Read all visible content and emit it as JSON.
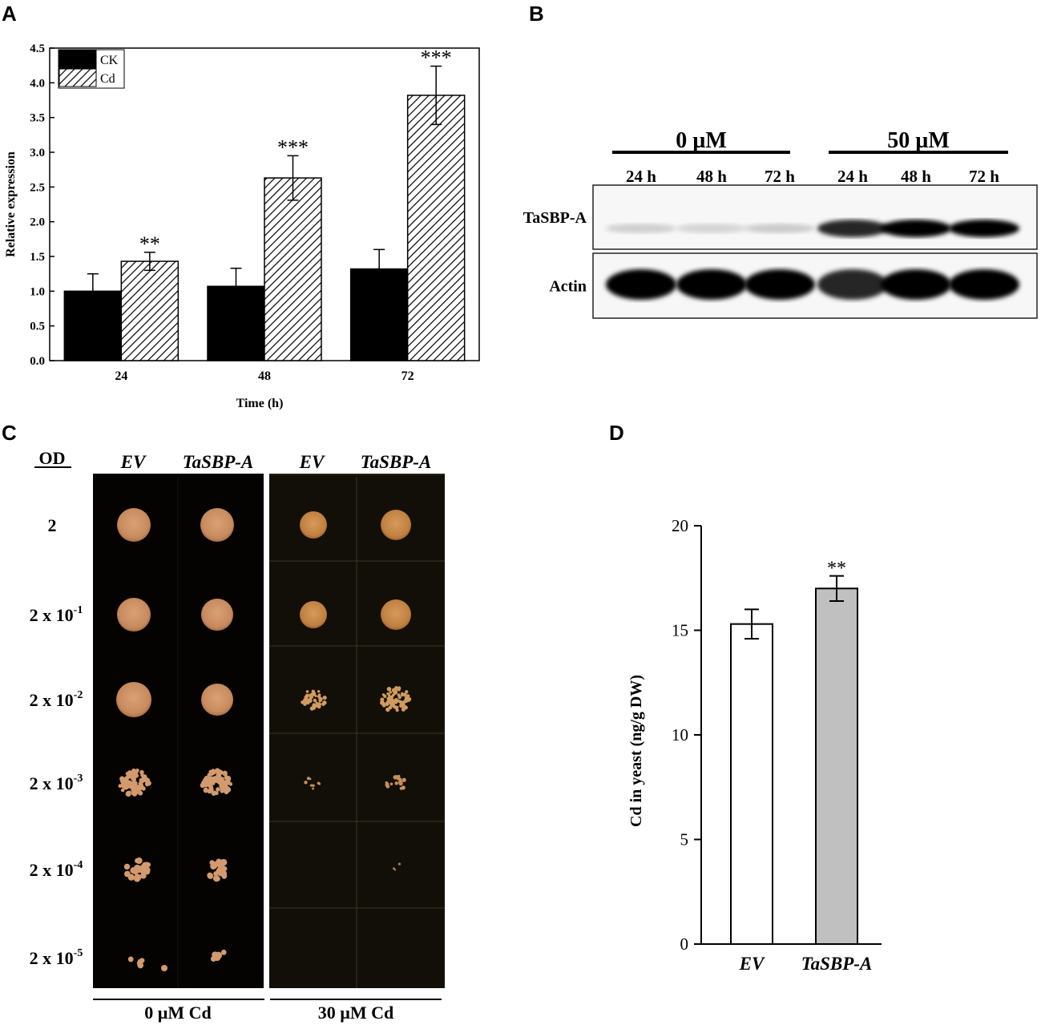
{
  "panels": {
    "a": {
      "letter": "A"
    },
    "b": {
      "letter": "B"
    },
    "c": {
      "letter": "C"
    },
    "d": {
      "letter": "D"
    }
  },
  "chart_data": [
    {
      "id": "a",
      "type": "bar",
      "xlabel": "Time (h)",
      "ylabel": "Relative expression",
      "ylim": [
        0,
        4.5
      ],
      "yticks": [
        "0.0",
        "0.5",
        "1.0",
        "1.5",
        "2.0",
        "2.5",
        "3.0",
        "3.5",
        "4.0",
        "4.5"
      ],
      "categories": [
        "24",
        "48",
        "72"
      ],
      "legend": {
        "placement": "top-left"
      },
      "series": [
        {
          "name": "CK",
          "fill": "solid-black",
          "values": [
            1.0,
            1.07,
            1.32
          ],
          "errors": [
            0.25,
            0.26,
            0.28
          ],
          "sig": [
            "",
            "",
            ""
          ]
        },
        {
          "name": "Cd",
          "fill": "hatched",
          "values": [
            1.43,
            2.63,
            3.82
          ],
          "errors": [
            0.13,
            0.32,
            0.42
          ],
          "sig": [
            "**",
            "***",
            "***"
          ]
        }
      ]
    },
    {
      "id": "d",
      "type": "bar",
      "xlabel": "",
      "ylabel": "Cd in yeast (ng/g DW)",
      "ylim": [
        0,
        20
      ],
      "yticks": [
        "0",
        "5",
        "10",
        "15",
        "20"
      ],
      "categories": [
        "EV",
        "TaSBP-A"
      ],
      "values": [
        15.3,
        17.0
      ],
      "errors": [
        0.7,
        0.6
      ],
      "colors": [
        "#ffffff",
        "#c0c0c0"
      ],
      "sig": [
        "",
        "**"
      ]
    }
  ],
  "blot": {
    "groups": [
      {
        "label": "0 µM",
        "lanes": [
          "24 h",
          "48 h",
          "72 h"
        ]
      },
      {
        "label": "50 µM",
        "lanes": [
          "24 h",
          "48 h",
          "72 h"
        ]
      }
    ],
    "rows": [
      {
        "label": "TaSBP-A",
        "intensity": [
          0.12,
          0.1,
          0.14,
          0.85,
          1.0,
          1.0
        ]
      },
      {
        "label": "Actin",
        "intensity": [
          1.0,
          1.0,
          1.0,
          0.85,
          1.0,
          1.0
        ]
      }
    ]
  },
  "plate": {
    "od_header": "OD",
    "od_labels": [
      {
        "base": "2 x 10",
        "exp": ""
      },
      {
        "base": "2 x 10",
        "exp": "-1"
      },
      {
        "base": "2 x 10",
        "exp": "-2"
      },
      {
        "base": "2 x 10",
        "exp": "-3"
      },
      {
        "base": "2 x 10",
        "exp": "-4"
      },
      {
        "base": "2 x 10",
        "exp": "-5"
      }
    ],
    "od_first": "2",
    "columns": [
      "EV",
      "TaSBP-A",
      "EV",
      "TaSBP-A"
    ],
    "conditions": [
      "0 µM Cd",
      "30 µM Cd"
    ]
  }
}
